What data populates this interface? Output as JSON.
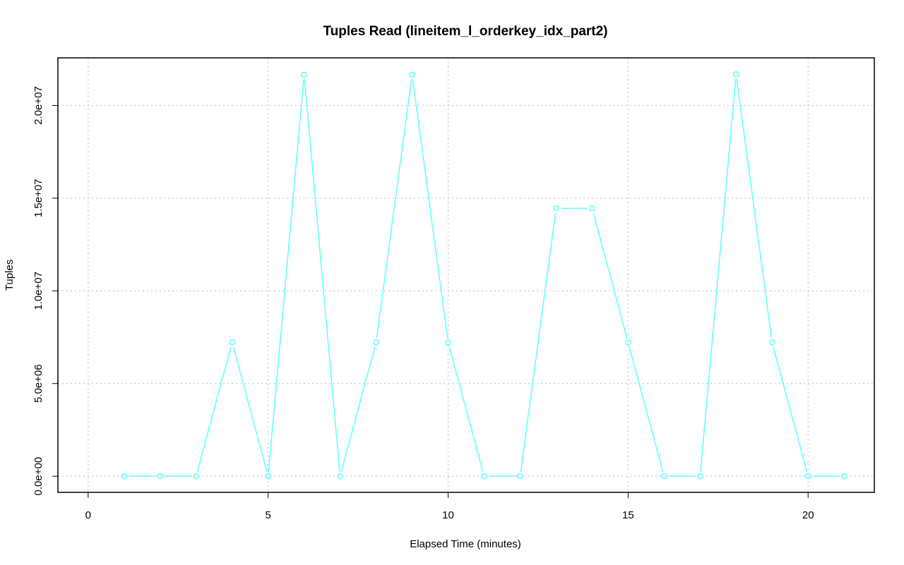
{
  "chart_data": {
    "type": "line",
    "title": "Tuples Read (lineitem_l_orderkey_idx_part2)",
    "xlabel": "Elapsed Time (minutes)",
    "ylabel": "Tuples",
    "xlim": [
      -0.84,
      21.84
    ],
    "ylim": [
      -870000,
      22570000
    ],
    "x_ticks": [
      0,
      5,
      10,
      15,
      20
    ],
    "x_tick_labels": [
      "0",
      "5",
      "10",
      "15",
      "20"
    ],
    "y_ticks": [
      0,
      5000000,
      10000000,
      15000000,
      20000000
    ],
    "y_tick_labels": [
      "0.0e+00",
      "5.0e+06",
      "1.0e+07",
      "1.5e+07",
      "2.0e+07"
    ],
    "grid": true,
    "color": "#66FFFF",
    "series": [
      {
        "x": [
          1,
          2,
          3,
          4,
          5,
          6,
          7,
          8,
          9,
          10,
          11,
          12,
          13,
          14,
          15,
          16,
          17,
          18,
          19,
          20,
          21
        ],
        "values": [
          0,
          0,
          0,
          7220000,
          0,
          21660000,
          0,
          7220000,
          21660000,
          7220000,
          0,
          0,
          14450000,
          14450000,
          7220000,
          0,
          0,
          21680000,
          7220000,
          0,
          0
        ]
      }
    ]
  }
}
